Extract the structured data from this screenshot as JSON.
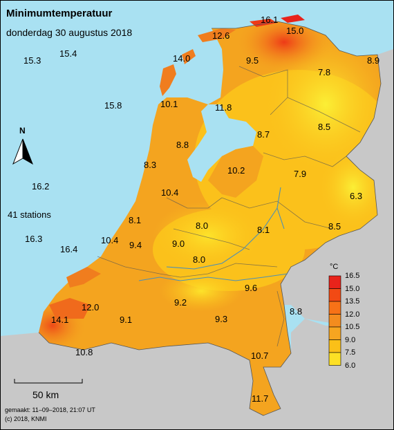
{
  "title": "Minimumtemperatuur",
  "subtitle": "donderdag 30 augustus 2018",
  "station_count": "41 stations",
  "north_label": "N",
  "scale_label": "50 km",
  "footer": {
    "made": "gemaakt: 11–09–2018, 21:07 UT",
    "copyright": "(c) 2018, KNMI"
  },
  "legend": {
    "unit": "°C",
    "ticks": [
      "16.5",
      "15.0",
      "13.5",
      "12.0",
      "10.5",
      "9.0",
      "7.5",
      "6.0"
    ],
    "colors": [
      "#e8231b",
      "#f24a14",
      "#f77217",
      "#f48c1e",
      "#f7a520",
      "#fbc018",
      "#fde025",
      "#fbfb3a"
    ]
  },
  "colors": {
    "sea": "#a9e1f2",
    "land_outside": "#c8c8c8",
    "warm": "#f4a41f",
    "mid": "#fbc11b",
    "cool": "#f9e62f",
    "hot": "#f0561a"
  },
  "stations": [
    {
      "value": "16.1"
    },
    {
      "value": "15.0"
    },
    {
      "value": "12.6"
    },
    {
      "value": "14.0"
    },
    {
      "value": "9.5"
    },
    {
      "value": "7.8"
    },
    {
      "value": "8.9"
    },
    {
      "value": "15.3"
    },
    {
      "value": "15.4"
    },
    {
      "value": "15.8"
    },
    {
      "value": "10.1"
    },
    {
      "value": "11.8"
    },
    {
      "value": "8.7"
    },
    {
      "value": "8.5"
    },
    {
      "value": "8.8"
    },
    {
      "value": "8.3"
    },
    {
      "value": "10.2"
    },
    {
      "value": "7.9"
    },
    {
      "value": "16.2"
    },
    {
      "value": "6.3"
    },
    {
      "value": "10.4"
    },
    {
      "value": "8.1"
    },
    {
      "value": "8.0"
    },
    {
      "value": "8.1"
    },
    {
      "value": "8.5"
    },
    {
      "value": "16.3"
    },
    {
      "value": "10.4"
    },
    {
      "value": "9.4"
    },
    {
      "value": "9.0"
    },
    {
      "value": "16.4"
    },
    {
      "value": "8.0"
    },
    {
      "value": "9.6"
    },
    {
      "value": "12.0"
    },
    {
      "value": "9.2"
    },
    {
      "value": "8.8"
    },
    {
      "value": "14.1"
    },
    {
      "value": "9.1"
    },
    {
      "value": "9.3"
    },
    {
      "value": "10.8"
    },
    {
      "value": "10.7"
    },
    {
      "value": "11.7"
    }
  ]
}
